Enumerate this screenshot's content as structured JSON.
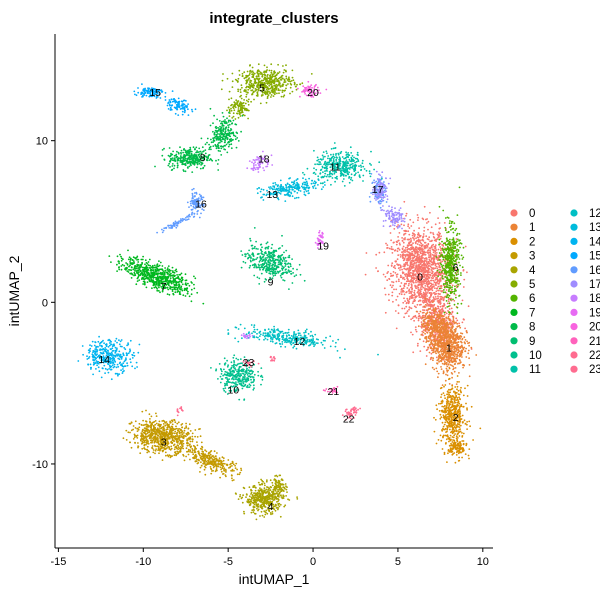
{
  "chart_data": {
    "type": "scatter",
    "title": "integrate_clusters",
    "xlabel": "intUMAP_1",
    "ylabel": "intUMAP_2",
    "xlim": [
      -15.2,
      10.6
    ],
    "ylim": [
      -15.2,
      16.6
    ],
    "x_ticks": [
      -15,
      -10,
      -5,
      0,
      5,
      10
    ],
    "y_ticks": [
      -10,
      0,
      10
    ],
    "grid": false,
    "legend_position": "right",
    "legend_columns": 2,
    "series": [
      {
        "name": "0",
        "color": "#F8766D",
        "label_pos": [
          6.3,
          1.6
        ],
        "blobs": [
          [
            6.4,
            2.0,
            1.6,
            2.4,
            0.15,
            4200
          ],
          [
            7.3,
            -1.2,
            1.0,
            1.8,
            0.25,
            1400
          ]
        ]
      },
      {
        "name": "1",
        "color": "#EB8335",
        "label_pos": [
          8.0,
          -2.8
        ],
        "blobs": [
          [
            7.9,
            -2.6,
            0.9,
            1.5,
            0.1,
            2200
          ],
          [
            7.2,
            -1.5,
            0.7,
            1.0,
            0.3,
            700
          ]
        ]
      },
      {
        "name": "2",
        "color": "#DA8F00",
        "label_pos": [
          8.4,
          -7.1
        ],
        "blobs": [
          [
            8.2,
            -7.0,
            0.7,
            1.6,
            0.0,
            1400
          ],
          [
            8.5,
            -9.0,
            0.5,
            0.6,
            0.0,
            400
          ]
        ]
      },
      {
        "name": "3",
        "color": "#C49A00",
        "label_pos": [
          -8.8,
          -8.6
        ],
        "blobs": [
          [
            -8.9,
            -8.3,
            1.6,
            0.9,
            -0.1,
            2200
          ],
          [
            -6.0,
            -9.8,
            1.6,
            0.5,
            -0.45,
            900
          ]
        ]
      },
      {
        "name": "4",
        "color": "#A9A400",
        "label_pos": [
          -2.5,
          -12.6
        ],
        "blobs": [
          [
            -2.9,
            -12.2,
            1.0,
            0.8,
            0.0,
            1300
          ],
          [
            -2.0,
            -11.5,
            0.4,
            0.6,
            0.0,
            300
          ]
        ]
      },
      {
        "name": "5",
        "color": "#86AC00",
        "label_pos": [
          -3.0,
          13.3
        ],
        "blobs": [
          [
            -2.8,
            13.6,
            1.5,
            0.8,
            0.0,
            1500
          ],
          [
            -4.4,
            12.0,
            0.6,
            0.6,
            0.5,
            300
          ]
        ]
      },
      {
        "name": "6",
        "color": "#53B400",
        "label_pos": [
          8.4,
          2.2
        ],
        "blobs": [
          [
            8.1,
            2.4,
            0.5,
            2.0,
            0.0,
            1400
          ]
        ]
      },
      {
        "name": "7",
        "color": "#00B81F",
        "label_pos": [
          -8.8,
          1.0
        ],
        "blobs": [
          [
            -9.2,
            1.6,
            1.9,
            0.65,
            -0.4,
            2000
          ]
        ]
      },
      {
        "name": "8",
        "color": "#00BB49",
        "label_pos": [
          -6.5,
          9.0
        ],
        "blobs": [
          [
            -7.3,
            8.9,
            1.1,
            0.6,
            0.0,
            900
          ],
          [
            -5.3,
            10.4,
            0.7,
            1.0,
            -0.4,
            700
          ]
        ]
      },
      {
        "name": "9",
        "color": "#00BE70",
        "label_pos": [
          -2.5,
          1.3
        ],
        "blobs": [
          [
            -2.6,
            2.5,
            1.3,
            0.9,
            -0.3,
            1100
          ]
        ]
      },
      {
        "name": "10",
        "color": "#00C08E",
        "label_pos": [
          -4.7,
          -5.4
        ],
        "blobs": [
          [
            -4.4,
            -4.5,
            1.0,
            0.9,
            0.0,
            900
          ]
        ]
      },
      {
        "name": "11",
        "color": "#00C1A9",
        "label_pos": [
          1.3,
          8.4
        ],
        "blobs": [
          [
            1.6,
            8.4,
            1.4,
            0.8,
            0.0,
            1100
          ]
        ]
      },
      {
        "name": "12",
        "color": "#00BFC4",
        "label_pos": [
          -0.8,
          -2.4
        ],
        "blobs": [
          [
            -1.5,
            -2.2,
            2.3,
            0.45,
            -0.15,
            900
          ]
        ]
      },
      {
        "name": "13",
        "color": "#00BBDC",
        "label_pos": [
          -2.4,
          6.7
        ],
        "blobs": [
          [
            -1.4,
            7.0,
            1.5,
            0.45,
            0.15,
            700
          ]
        ]
      },
      {
        "name": "14",
        "color": "#00B4F0",
        "label_pos": [
          -12.3,
          -3.5
        ],
        "blobs": [
          [
            -12.0,
            -3.3,
            1.3,
            0.9,
            0.0,
            1000
          ]
        ]
      },
      {
        "name": "15",
        "color": "#00A9FF",
        "label_pos": [
          -9.3,
          13.0
        ],
        "blobs": [
          [
            -9.6,
            13.0,
            0.7,
            0.3,
            0.0,
            300
          ],
          [
            -8.0,
            12.2,
            0.8,
            0.4,
            -0.5,
            300
          ]
        ]
      },
      {
        "name": "16",
        "color": "#619CFF",
        "label_pos": [
          -6.6,
          6.1
        ],
        "blobs": [
          [
            -6.9,
            6.1,
            0.4,
            0.6,
            0.0,
            300
          ],
          [
            -8.0,
            4.9,
            1.0,
            0.12,
            0.5,
            200
          ],
          [
            3.9,
            7.0,
            0.4,
            0.8,
            0.0,
            300
          ]
        ]
      },
      {
        "name": "17",
        "color": "#9F8CFF",
        "label_pos": [
          3.8,
          7.0
        ],
        "blobs": [
          [
            4.0,
            7.0,
            0.4,
            0.7,
            0.0,
            300
          ],
          [
            4.8,
            5.2,
            0.6,
            0.5,
            -0.6,
            300
          ]
        ]
      },
      {
        "name": "18",
        "color": "#C77CFF",
        "label_pos": [
          -2.9,
          8.9
        ],
        "blobs": [
          [
            -3.2,
            8.6,
            0.6,
            0.4,
            0.6,
            200
          ],
          [
            -3.9,
            -2.1,
            0.3,
            0.15,
            0.0,
            60
          ]
        ]
      },
      {
        "name": "19",
        "color": "#E76BF3",
        "label_pos": [
          0.6,
          3.5
        ],
        "blobs": [
          [
            0.4,
            3.8,
            0.2,
            0.45,
            0.0,
            120
          ]
        ]
      },
      {
        "name": "20",
        "color": "#F863DF",
        "label_pos": [
          0.0,
          13.0
        ],
        "blobs": [
          [
            -0.2,
            13.1,
            0.5,
            0.35,
            0.0,
            200
          ]
        ]
      },
      {
        "name": "21",
        "color": "#FF62BC",
        "label_pos": [
          1.2,
          -5.5
        ],
        "blobs": [
          [
            1.2,
            -5.5,
            0.35,
            0.15,
            0.0,
            80
          ]
        ]
      },
      {
        "name": "22",
        "color": "#FF6C90",
        "label_pos": [
          2.1,
          -7.2
        ],
        "blobs": [
          [
            2.3,
            -6.8,
            0.45,
            0.3,
            0.4,
            150
          ],
          [
            -2.4,
            -3.5,
            0.2,
            0.3,
            0.0,
            40
          ]
        ]
      },
      {
        "name": "23",
        "color": "#FF6C90",
        "label_pos": [
          -3.8,
          -3.7
        ],
        "blobs": [
          [
            -3.8,
            -3.8,
            0.3,
            0.2,
            0.0,
            60
          ],
          [
            -7.8,
            -6.7,
            0.3,
            0.2,
            0.4,
            40
          ]
        ]
      }
    ]
  }
}
